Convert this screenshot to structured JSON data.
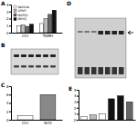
{
  "chart_data": [
    {
      "type": "bar",
      "title": "A",
      "categories": [
        "Ctrl",
        "TAMH"
      ],
      "series": [
        {
          "name": "Vehicle",
          "color": "#ffffff",
          "values": [
            1.0,
            1.3
          ]
        },
        {
          "name": "APAP",
          "color": "#bbbbbb",
          "values": [
            1.1,
            2.0
          ]
        },
        {
          "name": "NAPQI",
          "color": "#666666",
          "values": [
            0.9,
            2.6
          ]
        },
        {
          "name": "tBHQ",
          "color": "#111111",
          "values": [
            1.2,
            3.2
          ]
        }
      ],
      "ylim": [
        0,
        4
      ],
      "yticks": [
        0,
        1,
        2,
        3,
        4
      ],
      "grid": false,
      "legend": "upper left"
    },
    {
      "type": "bar",
      "title": "C",
      "categories": [
        "Ctrl",
        "Nrf2"
      ],
      "values": [
        1,
        6
      ],
      "colors": [
        "#ffffff",
        "#888888"
      ],
      "ylim": [
        0,
        8
      ],
      "yticks": [
        0,
        2,
        4,
        6,
        8
      ],
      "grid": false
    },
    {
      "type": "bar",
      "title": "E",
      "categories": [
        null,
        null,
        null,
        null,
        null,
        null
      ],
      "values": [
        0.5,
        0.8,
        1.0,
        3.5,
        4.0,
        3.0
      ],
      "colors": [
        "#ffffff",
        "#bbbbbb",
        "#ffffff",
        "#111111",
        "#111111",
        "#666666"
      ],
      "ylim": [
        0,
        5
      ],
      "yticks": [
        0,
        1,
        2,
        3,
        4,
        5
      ],
      "grid": false
    }
  ],
  "gels": [
    {
      "label": "B"
    },
    {
      "label": "D"
    }
  ]
}
